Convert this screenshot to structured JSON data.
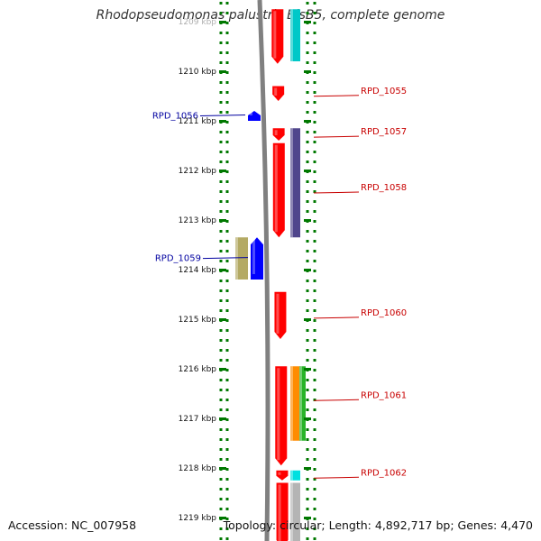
{
  "title": "Rhodopseudomonas palustris BisB5, complete genome",
  "footer": {
    "accession": "Accession: NC_007958",
    "topology": "Topology: circular; Length: 4,892,717 bp; Genes: 4,470"
  },
  "scale": {
    "ticks": [
      {
        "label": "1209 kbp",
        "kb": 1209
      },
      {
        "label": "1210 kbp",
        "kb": 1210
      },
      {
        "label": "1211 kbp",
        "kb": 1211
      },
      {
        "label": "1212 kbp",
        "kb": 1212
      },
      {
        "label": "1213 kbp",
        "kb": 1213
      },
      {
        "label": "1214 kbp",
        "kb": 1214
      },
      {
        "label": "1215 kbp",
        "kb": 1215
      },
      {
        "label": "1216 kbp",
        "kb": 1216
      },
      {
        "label": "1217 kbp",
        "kb": 1217
      },
      {
        "label": "1218 kbp",
        "kb": 1218
      },
      {
        "label": "1219 kbp",
        "kb": 1219
      }
    ]
  },
  "genes": [
    {
      "label": "",
      "strand": "plus",
      "start_kb": 1208.75,
      "end_kb": 1209.85,
      "color": "#ff0000"
    },
    {
      "label": "RPD_1055",
      "strand": "plus",
      "start_kb": 1210.3,
      "end_kb": 1210.6,
      "color": "#ff0000"
    },
    {
      "label": "RPD_1057",
      "strand": "plus",
      "start_kb": 1211.15,
      "end_kb": 1211.4,
      "color": "#ff0000"
    },
    {
      "label": "RPD_1058",
      "strand": "plus",
      "start_kb": 1211.45,
      "end_kb": 1213.35,
      "color": "#ff0000"
    },
    {
      "label": "RPD_1060",
      "strand": "plus",
      "start_kb": 1214.45,
      "end_kb": 1215.4,
      "color": "#ff0000"
    },
    {
      "label": "RPD_1061",
      "strand": "plus",
      "start_kb": 1215.95,
      "end_kb": 1217.95,
      "color": "#ff0000"
    },
    {
      "label": "RPD_1062",
      "strand": "plus",
      "start_kb": 1218.05,
      "end_kb": 1218.25,
      "color": "#ff0000"
    },
    {
      "label": "",
      "strand": "plus",
      "start_kb": 1218.3,
      "end_kb": 1219.6,
      "color": "#ff0000"
    },
    {
      "label": "RPD_1056",
      "strand": "minus",
      "start_kb": 1210.8,
      "end_kb": 1211.0,
      "color": "#0000ff"
    },
    {
      "label": "RPD_1059",
      "strand": "minus",
      "start_kb": 1213.35,
      "end_kb": 1214.2,
      "color": "#0000ff"
    }
  ],
  "features": [
    {
      "start_kb": 1208.75,
      "end_kb": 1209.8,
      "color": "#00c8c8",
      "side": "plus"
    },
    {
      "start_kb": 1211.15,
      "end_kb": 1213.35,
      "color": "#50468c",
      "side": "plus"
    },
    {
      "start_kb": 1215.95,
      "end_kb": 1217.45,
      "color": "#ff8c00",
      "side": "plus"
    },
    {
      "start_kb": 1215.95,
      "end_kb": 1217.45,
      "color": "#28b428",
      "side": "plus2"
    },
    {
      "start_kb": 1218.05,
      "end_kb": 1218.25,
      "color": "#00e0e0",
      "side": "plus"
    },
    {
      "start_kb": 1218.3,
      "end_kb": 1219.6,
      "color": "#b4b4b4",
      "side": "plus"
    },
    {
      "start_kb": 1213.35,
      "end_kb": 1214.2,
      "color": "#b4aa64",
      "side": "minus"
    }
  ],
  "colors": {
    "backbone": "#808080",
    "ruler": "#007800",
    "plus_label": "#c80000",
    "minus_label": "#0000a0"
  }
}
